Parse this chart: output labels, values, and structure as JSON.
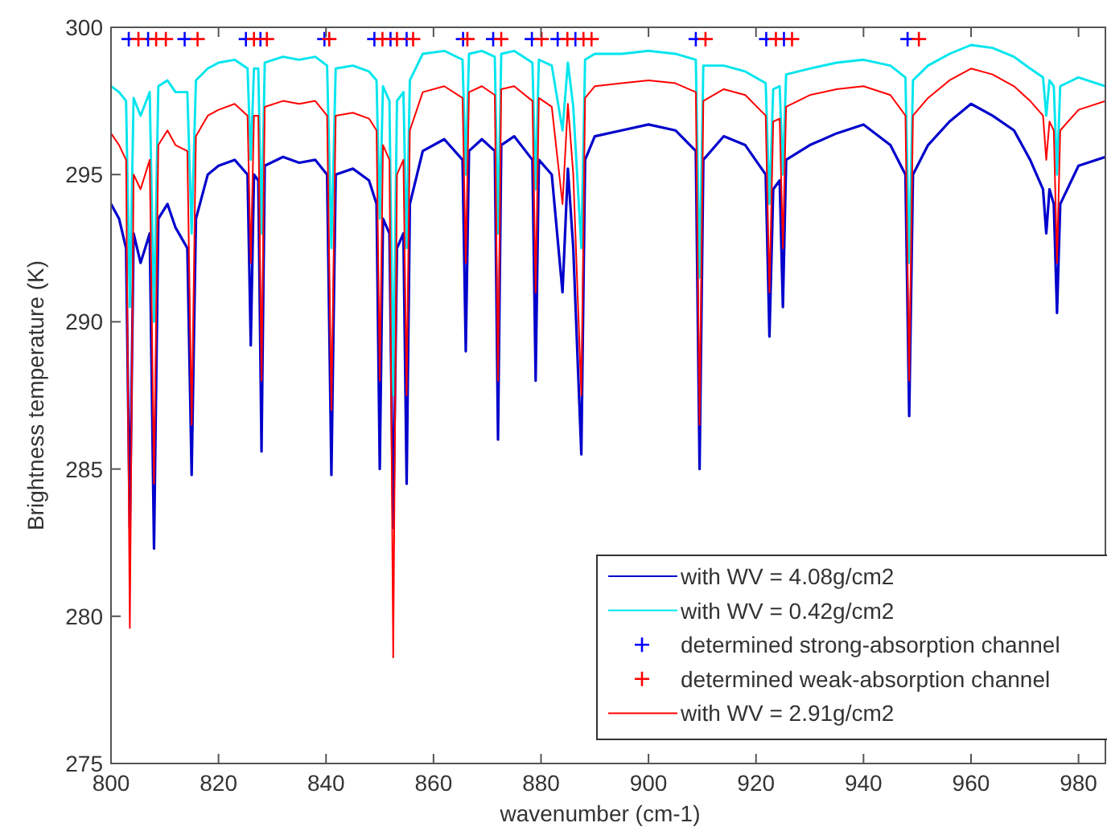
{
  "chart_data": {
    "type": "line",
    "xlabel": "wavenumber (cm-1)",
    "ylabel": "Brightness temperature (K)",
    "xlim": [
      800,
      985
    ],
    "xticks": [
      800,
      820,
      840,
      860,
      880,
      900,
      920,
      940,
      960,
      980
    ],
    "ylim": [
      275,
      300
    ],
    "yticks": [
      275,
      280,
      285,
      290,
      295,
      300
    ],
    "grid": false,
    "legend": "bottom right",
    "marker": "none",
    "line_style": "solid",
    "x": [
      800,
      801.5,
      802.8,
      803.5,
      804.2,
      805.5,
      807.2,
      808,
      808.8,
      810.5,
      812,
      814.2,
      815,
      815.8,
      818,
      820,
      823,
      825.4,
      826,
      826.6,
      827.4,
      828,
      828.6,
      832,
      835,
      838,
      840.2,
      841,
      841.8,
      845,
      848,
      849.4,
      850,
      850.6,
      851.8,
      852.5,
      853.2,
      854.4,
      855,
      855.6,
      858,
      862,
      865.4,
      866,
      866.6,
      869,
      871.4,
      872,
      872.6,
      875,
      878.4,
      879,
      879.6,
      882,
      884,
      885,
      886,
      887.5,
      888.2,
      890,
      895,
      900,
      905,
      908.8,
      909.5,
      910.2,
      914,
      918,
      921.8,
      922.5,
      923.2,
      924.4,
      925,
      925.6,
      930,
      935,
      940,
      945,
      947.8,
      948.5,
      949.2,
      952,
      956,
      960,
      964,
      968,
      971,
      973.4,
      974,
      974.6,
      975.4,
      976,
      976.6,
      980,
      985
    ],
    "series": [
      {
        "name": "with WV = 4.08g/cm2",
        "color": "#0000cc",
        "values": [
          294.0,
          293.5,
          292.5,
          283.0,
          293.0,
          292.0,
          293.0,
          282.3,
          293.5,
          294.0,
          293.2,
          292.5,
          284.8,
          293.5,
          295.0,
          295.3,
          295.5,
          295.0,
          289.2,
          295.0,
          294.8,
          285.6,
          295.3,
          295.6,
          295.4,
          295.5,
          295.0,
          284.8,
          295.0,
          295.2,
          294.8,
          294.0,
          285.0,
          293.5,
          293.0,
          283.0,
          292.5,
          293.0,
          284.5,
          294.0,
          295.8,
          296.2,
          295.5,
          289.0,
          295.8,
          296.2,
          295.8,
          286.0,
          296.0,
          296.3,
          295.5,
          288.0,
          295.5,
          295.0,
          291.0,
          295.2,
          292.5,
          285.5,
          295.5,
          296.3,
          296.5,
          296.7,
          296.5,
          295.8,
          285.0,
          295.5,
          296.3,
          296.0,
          295.0,
          289.5,
          294.5,
          294.8,
          290.5,
          295.5,
          296.0,
          296.4,
          296.7,
          296.0,
          295.0,
          286.8,
          295.0,
          296.0,
          296.8,
          297.4,
          297.0,
          296.5,
          295.5,
          294.5,
          293.0,
          294.5,
          294.0,
          290.3,
          294.0,
          295.3,
          295.6
        ]
      },
      {
        "name": "with WV = 0.42g/cm2",
        "color": "#00e5ee",
        "values": [
          298.0,
          297.8,
          297.5,
          290.5,
          297.6,
          297.0,
          297.8,
          290.0,
          298.0,
          298.2,
          297.8,
          297.8,
          293.0,
          298.2,
          298.6,
          298.8,
          298.9,
          298.6,
          295.5,
          298.6,
          298.6,
          293.0,
          298.8,
          299.0,
          298.9,
          299.0,
          298.7,
          292.5,
          298.6,
          298.7,
          298.5,
          298.2,
          293.5,
          298.0,
          297.5,
          287.5,
          297.5,
          297.8,
          292.5,
          298.2,
          299.1,
          299.2,
          298.9,
          295.0,
          299.1,
          299.2,
          299.0,
          293.0,
          299.1,
          299.2,
          298.8,
          294.5,
          298.9,
          298.7,
          296.5,
          298.8,
          297.3,
          292.5,
          298.9,
          299.1,
          299.1,
          299.2,
          299.1,
          298.9,
          291.5,
          298.7,
          298.7,
          298.5,
          298.1,
          294.0,
          297.9,
          298.0,
          295.0,
          298.4,
          298.6,
          298.8,
          298.9,
          298.7,
          298.3,
          292.0,
          298.2,
          298.7,
          299.1,
          299.4,
          299.3,
          299.0,
          298.6,
          298.3,
          297.0,
          298.2,
          298.0,
          295.0,
          298.0,
          298.3,
          298.0
        ]
      },
      {
        "name": "determined strong-absorption channel",
        "type": "scatter",
        "marker": "cross",
        "color": "#0000ff",
        "x": [
          803.3,
          806.9,
          813.7,
          825.1,
          827.8,
          839.7,
          849.0,
          852.0,
          855.0,
          865.5,
          871.1,
          878.3,
          883.1,
          886.4,
          908.8,
          921.9,
          925.2,
          948.2
        ],
        "values": [
          299.6,
          299.6,
          299.6,
          299.6,
          299.6,
          299.6,
          299.6,
          299.6,
          299.6,
          299.6,
          299.6,
          299.6,
          299.6,
          299.6,
          299.6,
          299.6,
          299.6,
          299.6
        ]
      },
      {
        "name": "determined weak-absorption channel",
        "type": "scatter",
        "marker": "cross",
        "color": "#ff0000",
        "x": [
          805.1,
          808.4,
          810.2,
          816.1,
          826.6,
          829.0,
          840.6,
          850.5,
          853.2,
          856.2,
          866.3,
          872.6,
          880.1,
          884.9,
          887.9,
          889.4,
          910.6,
          923.7,
          926.7,
          950.3
        ],
        "values": [
          299.6,
          299.6,
          299.6,
          299.6,
          299.6,
          299.6,
          299.6,
          299.6,
          299.6,
          299.6,
          299.6,
          299.6,
          299.6,
          299.6,
          299.6,
          299.6,
          299.6,
          299.6,
          299.6,
          299.6
        ]
      },
      {
        "name": "with WV = 2.91g/cm2",
        "color": "#ff0000",
        "values": [
          296.4,
          296.0,
          295.5,
          279.6,
          295.0,
          294.5,
          295.5,
          284.5,
          296.0,
          296.5,
          296.0,
          295.8,
          286.5,
          296.3,
          297.0,
          297.2,
          297.4,
          297.0,
          292.0,
          297.0,
          297.0,
          288.0,
          297.3,
          297.5,
          297.4,
          297.5,
          297.0,
          287.0,
          297.0,
          297.1,
          296.9,
          296.5,
          288.0,
          296.0,
          295.5,
          278.6,
          295.0,
          295.5,
          287.5,
          296.5,
          297.8,
          298.0,
          297.6,
          292.0,
          297.8,
          298.0,
          297.7,
          288.0,
          297.9,
          298.0,
          297.5,
          291.0,
          297.6,
          297.3,
          294.0,
          297.4,
          295.0,
          287.5,
          297.6,
          298.0,
          298.1,
          298.2,
          298.1,
          297.8,
          286.5,
          297.5,
          297.9,
          297.7,
          297.0,
          291.0,
          296.8,
          296.9,
          292.5,
          297.3,
          297.7,
          297.9,
          298.0,
          297.7,
          297.0,
          288.0,
          297.0,
          297.6,
          298.2,
          298.6,
          298.4,
          298.0,
          297.5,
          297.0,
          295.5,
          296.8,
          296.5,
          292.0,
          296.5,
          297.2,
          297.5
        ]
      }
    ]
  }
}
